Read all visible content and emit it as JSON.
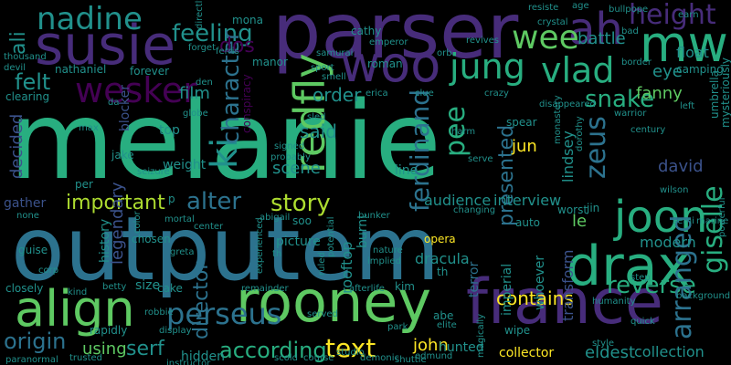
{
  "palette": {
    "purple": "#440154",
    "indigo": "#472c7a",
    "blue": "#3b528b",
    "steel": "#2c728e",
    "teal": "#21918c",
    "sea": "#28ae80",
    "green": "#5ec962",
    "lime": "#addc30",
    "yellow": "#fde725",
    "background": "#000000"
  },
  "words": [
    "melanie",
    "outputem",
    "parser",
    "susie",
    "france",
    "rooney",
    "align",
    "woo",
    "mw",
    "ah",
    "drax",
    "joon",
    "jung",
    "vlad",
    "nadine",
    "feeling",
    "wee",
    "height",
    "wesker",
    "felt",
    "redfly",
    "ki",
    "character",
    "perseus",
    "text",
    "serf",
    "according",
    "contains",
    "reverse",
    "alter",
    "story",
    "important",
    "director",
    "origin",
    "using",
    "john",
    "arranged",
    "giselle",
    "zeus",
    "snake",
    "eye",
    "fanny",
    "pee",
    "ferdinand",
    "presented",
    "audience",
    "interview",
    "modern",
    "said",
    "order",
    "scene",
    "decided",
    "film",
    "dos",
    "ali",
    "jun",
    "david",
    "le",
    "lindsey",
    "line",
    "legendary",
    "weight",
    "history",
    "transform",
    "whoever",
    "imperial",
    "rooftop",
    "burnt",
    "picture",
    "dracula",
    "terror",
    "hunted",
    "collector",
    "eldest",
    "collection",
    "battle",
    "float",
    "camping",
    "cathy",
    "mona",
    "ferris",
    "manor",
    "nathaniel",
    "forever",
    "roman",
    "emperor",
    "samurai",
    "clearing",
    "blocker",
    "top",
    "jake",
    "per",
    "gather",
    "guise",
    "corp",
    "closely",
    "kind",
    "betty",
    "size",
    "cake",
    "robbie",
    "hidden",
    "instructor",
    "trusted",
    "paranormal",
    "rapidly",
    "display",
    "served",
    "afterlife",
    "kim",
    "remainder",
    "experienced",
    "chosen",
    "greta",
    "mortal",
    "abigail",
    "soo",
    "potential",
    "ruled",
    "nature",
    "implied",
    "opera",
    "bunker",
    "changing",
    "serve",
    "harm",
    "spear",
    "century",
    "wilson",
    "semi",
    "marine",
    "powerful",
    "background",
    "humanity",
    "quick",
    "style",
    "wipe",
    "elite",
    "abe",
    "park",
    "studio",
    "scold",
    "course",
    "demonic",
    "shuttle",
    "edmund",
    "step",
    "worst",
    "jin",
    "dorothy",
    "monastery",
    "conspiracy",
    "signed",
    "probably",
    "seizure",
    "color",
    "center",
    "globe",
    "den",
    "devil",
    "thousand",
    "mysteriously",
    "umbrella",
    "left",
    "warrior",
    "disappeared",
    "crazy",
    "clue",
    "erica",
    "sport",
    "smell",
    "revives",
    "orb",
    "bullpope",
    "bad",
    "earn",
    "age",
    "forget",
    "directly",
    "resiste",
    "crystal",
    "border",
    "auto",
    "magically",
    "da",
    "th",
    "max",
    "th",
    "none",
    "p",
    "sled"
  ]
}
